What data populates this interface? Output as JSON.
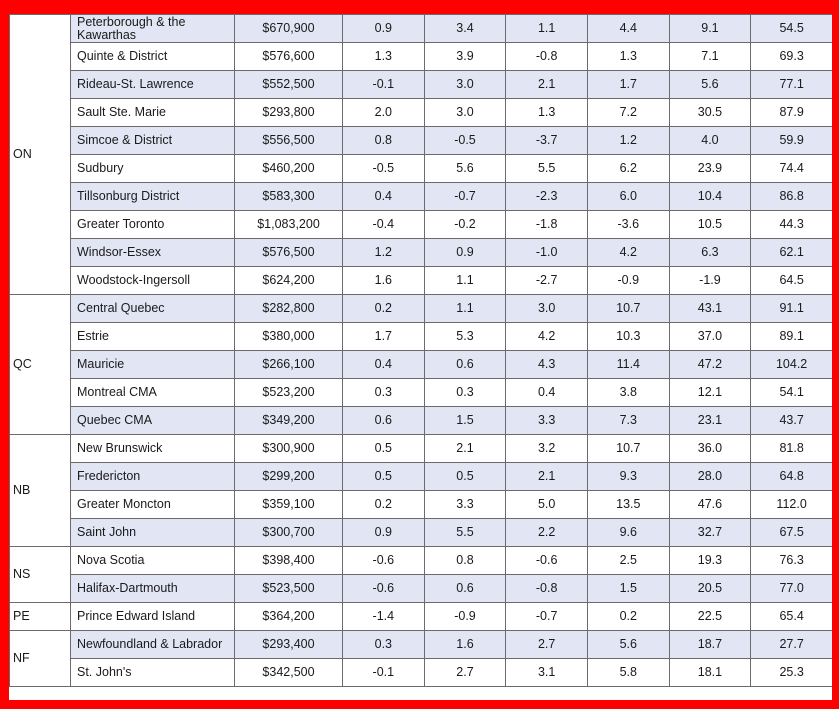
{
  "groups": [
    {
      "province": "ON",
      "rows": [
        {
          "area": "Peterborough & the Kawarthas",
          "price": "$670,900",
          "v1": "0.9",
          "v2": "3.4",
          "v3": "1.1",
          "v4": "4.4",
          "v5": "9.1",
          "v6": "54.5"
        },
        {
          "area": "Quinte & District",
          "price": "$576,600",
          "v1": "1.3",
          "v2": "3.9",
          "v3": "-0.8",
          "v4": "1.3",
          "v5": "7.1",
          "v6": "69.3"
        },
        {
          "area": "Rideau-St. Lawrence",
          "price": "$552,500",
          "v1": "-0.1",
          "v2": "3.0",
          "v3": "2.1",
          "v4": "1.7",
          "v5": "5.6",
          "v6": "77.1"
        },
        {
          "area": "Sault Ste. Marie",
          "price": "$293,800",
          "v1": "2.0",
          "v2": "3.0",
          "v3": "1.3",
          "v4": "7.2",
          "v5": "30.5",
          "v6": "87.9"
        },
        {
          "area": "Simcoe & District",
          "price": "$556,500",
          "v1": "0.8",
          "v2": "-0.5",
          "v3": "-3.7",
          "v4": "1.2",
          "v5": "4.0",
          "v6": "59.9"
        },
        {
          "area": "Sudbury",
          "price": "$460,200",
          "v1": "-0.5",
          "v2": "5.6",
          "v3": "5.5",
          "v4": "6.2",
          "v5": "23.9",
          "v6": "74.4"
        },
        {
          "area": "Tillsonburg District",
          "price": "$583,300",
          "v1": "0.4",
          "v2": "-0.7",
          "v3": "-2.3",
          "v4": "6.0",
          "v5": "10.4",
          "v6": "86.8"
        },
        {
          "area": "Greater Toronto",
          "price": "$1,083,200",
          "v1": "-0.4",
          "v2": "-0.2",
          "v3": "-1.8",
          "v4": "-3.6",
          "v5": "10.5",
          "v6": "44.3"
        },
        {
          "area": "Windsor-Essex",
          "price": "$576,500",
          "v1": "1.2",
          "v2": "0.9",
          "v3": "-1.0",
          "v4": "4.2",
          "v5": "6.3",
          "v6": "62.1"
        },
        {
          "area": "Woodstock-Ingersoll",
          "price": "$624,200",
          "v1": "1.6",
          "v2": "1.1",
          "v3": "-2.7",
          "v4": "-0.9",
          "v5": "-1.9",
          "v6": "64.5"
        }
      ]
    },
    {
      "province": "QC",
      "rows": [
        {
          "area": "Central Quebec",
          "price": "$282,800",
          "v1": "0.2",
          "v2": "1.1",
          "v3": "3.0",
          "v4": "10.7",
          "v5": "43.1",
          "v6": "91.1"
        },
        {
          "area": "Estrie",
          "price": "$380,000",
          "v1": "1.7",
          "v2": "5.3",
          "v3": "4.2",
          "v4": "10.3",
          "v5": "37.0",
          "v6": "89.1"
        },
        {
          "area": "Mauricie",
          "price": "$266,100",
          "v1": "0.4",
          "v2": "0.6",
          "v3": "4.3",
          "v4": "11.4",
          "v5": "47.2",
          "v6": "104.2"
        },
        {
          "area": "Montreal CMA",
          "price": "$523,200",
          "v1": "0.3",
          "v2": "0.3",
          "v3": "0.4",
          "v4": "3.8",
          "v5": "12.1",
          "v6": "54.1"
        },
        {
          "area": "Quebec CMA",
          "price": "$349,200",
          "v1": "0.6",
          "v2": "1.5",
          "v3": "3.3",
          "v4": "7.3",
          "v5": "23.1",
          "v6": "43.7"
        }
      ]
    },
    {
      "province": "NB",
      "rows": [
        {
          "area": "New Brunswick",
          "price": "$300,900",
          "v1": "0.5",
          "v2": "2.1",
          "v3": "3.2",
          "v4": "10.7",
          "v5": "36.0",
          "v6": "81.8"
        },
        {
          "area": "Fredericton",
          "price": "$299,200",
          "v1": "0.5",
          "v2": "0.5",
          "v3": "2.1",
          "v4": "9.3",
          "v5": "28.0",
          "v6": "64.8"
        },
        {
          "area": "Greater Moncton",
          "price": "$359,100",
          "v1": "0.2",
          "v2": "3.3",
          "v3": "5.0",
          "v4": "13.5",
          "v5": "47.6",
          "v6": "112.0"
        },
        {
          "area": "Saint John",
          "price": "$300,700",
          "v1": "0.9",
          "v2": "5.5",
          "v3": "2.2",
          "v4": "9.6",
          "v5": "32.7",
          "v6": "67.5"
        }
      ]
    },
    {
      "province": "NS",
      "rows": [
        {
          "area": "Nova Scotia",
          "price": "$398,400",
          "v1": "-0.6",
          "v2": "0.8",
          "v3": "-0.6",
          "v4": "2.5",
          "v5": "19.3",
          "v6": "76.3"
        },
        {
          "area": "Halifax-Dartmouth",
          "price": "$523,500",
          "v1": "-0.6",
          "v2": "0.6",
          "v3": "-0.8",
          "v4": "1.5",
          "v5": "20.5",
          "v6": "77.0"
        }
      ]
    },
    {
      "province": "PE",
      "rows": [
        {
          "area": "Prince Edward Island",
          "price": "$364,200",
          "v1": "-1.4",
          "v2": "-0.9",
          "v3": "-0.7",
          "v4": "0.2",
          "v5": "22.5",
          "v6": "65.4"
        }
      ]
    },
    {
      "province": "NF",
      "rows": [
        {
          "area": "Newfoundland & Labrador",
          "price": "$293,400",
          "v1": "0.3",
          "v2": "1.6",
          "v3": "2.7",
          "v4": "5.6",
          "v5": "18.7",
          "v6": "27.7"
        },
        {
          "area": "St. John's",
          "price": "$342,500",
          "v1": "-0.1",
          "v2": "2.7",
          "v3": "3.1",
          "v4": "5.8",
          "v5": "18.1",
          "v6": "25.3"
        }
      ]
    }
  ],
  "colors": {
    "frame": "#ff0000",
    "shaded_row": "#e2e6f4",
    "grid": "#6b6b6b"
  }
}
